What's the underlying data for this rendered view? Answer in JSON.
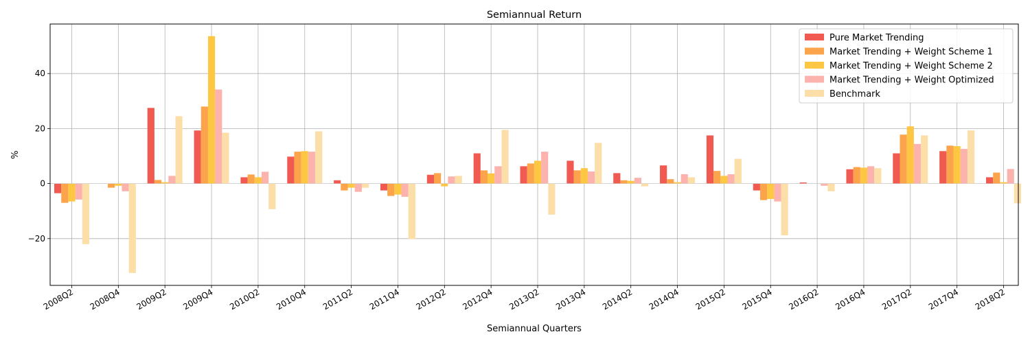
{
  "chart_data": {
    "type": "bar",
    "title": "Semiannual Return",
    "xlabel": "Semiannual Quarters",
    "ylabel": "%",
    "ylim": [
      -37,
      58
    ],
    "yticks": [
      -20,
      0,
      20,
      40
    ],
    "grid": true,
    "legend_position": "top-right",
    "categories": [
      "2008Q2",
      "2008Q4",
      "2009Q2",
      "2009Q4",
      "2010Q2",
      "2010Q4",
      "2011Q2",
      "2011Q4",
      "2012Q2",
      "2012Q4",
      "2013Q2",
      "2013Q4",
      "2014Q2",
      "2014Q4",
      "2015Q2",
      "2015Q4",
      "2016Q2",
      "2016Q4",
      "2017Q2",
      "2017Q4",
      "2018Q2"
    ],
    "series": [
      {
        "name": "Pure Market Trending",
        "color": "#f15a50",
        "values": [
          -3.5,
          0,
          27.5,
          19.3,
          2.3,
          9.8,
          1.2,
          -2.5,
          3.2,
          11.0,
          6.3,
          8.3,
          3.8,
          6.6,
          17.5,
          -2.5,
          0.4,
          5.2,
          11.0,
          11.8,
          2.3
        ]
      },
      {
        "name": "Market Trending + Weight Scheme 1",
        "color": "#fca44b",
        "values": [
          -7.0,
          -1.5,
          1.3,
          28.0,
          3.3,
          11.6,
          -2.5,
          -4.5,
          3.8,
          4.8,
          7.3,
          4.8,
          1.2,
          1.6,
          4.6,
          -6.0,
          0,
          6.0,
          17.8,
          13.8,
          4.0
        ]
      },
      {
        "name": "Market Trending + Weight Scheme 2",
        "color": "#fdc744",
        "values": [
          -6.5,
          -0.8,
          0.5,
          53.6,
          2.3,
          11.8,
          -1.5,
          -4.0,
          -1.0,
          3.7,
          8.3,
          5.6,
          1.0,
          0.5,
          2.8,
          -5.6,
          0,
          5.8,
          20.8,
          13.6,
          0.5
        ]
      },
      {
        "name": "Market Trending + Weight Optimized",
        "color": "#fcb2ad",
        "values": [
          -5.8,
          -2.8,
          2.8,
          34.2,
          4.3,
          11.6,
          -3.0,
          -4.8,
          2.6,
          6.3,
          11.6,
          4.4,
          2.1,
          3.4,
          3.4,
          -6.5,
          -0.8,
          6.3,
          14.4,
          12.6,
          5.3
        ]
      },
      {
        "name": "Benchmark",
        "color": "#fcdea8",
        "values": [
          -22.0,
          -32.5,
          24.5,
          18.5,
          -9.3,
          19.0,
          -1.5,
          -20.2,
          2.8,
          19.5,
          -11.3,
          14.8,
          -1.0,
          2.3,
          9.0,
          -18.8,
          -2.8,
          5.6,
          17.5,
          19.3,
          -7.2
        ]
      }
    ]
  }
}
